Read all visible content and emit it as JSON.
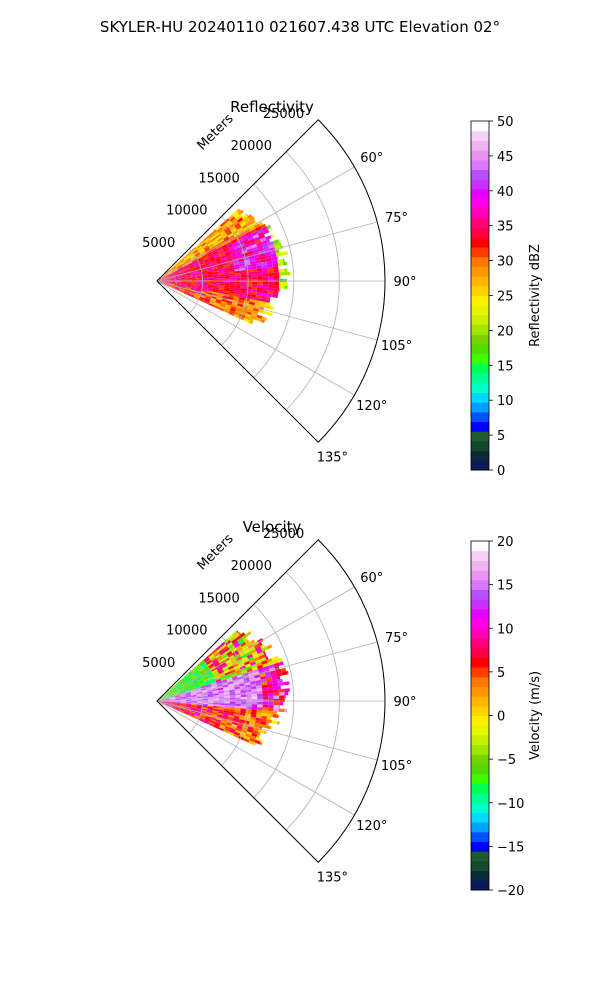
{
  "figure": {
    "suptitle": "SKYLER-HU  20240110  021607.438 UTC Elevation 02°"
  },
  "chart_data": [
    {
      "type": "polar-sector-radar",
      "title": "Reflectivity",
      "radial_label": "Meters",
      "radial_ticks": [
        5000,
        10000,
        15000,
        20000,
        25000
      ],
      "radial_tick_labels": [
        "5000",
        "10000",
        "15000",
        "20000",
        "25000"
      ],
      "angle_ticks": [
        60,
        75,
        90,
        105,
        120,
        135
      ],
      "angle_tick_labels": [
        "60°",
        "75°",
        "90°",
        "105°",
        "120°",
        "135°"
      ],
      "theta_range_deg": [
        45,
        135
      ],
      "r_max_m": 25000,
      "colorbar": {
        "label": "Reflectivity dBZ",
        "range": [
          0,
          50
        ],
        "ticks": [
          0,
          5,
          10,
          15,
          20,
          25,
          30,
          35,
          40,
          45,
          50
        ],
        "tick_labels": [
          "0",
          "5",
          "10",
          "15",
          "20",
          "25",
          "30",
          "35",
          "40",
          "45",
          "50"
        ],
        "colors": [
          "#0b1a5e",
          "#0b2a3a",
          "#164a2e",
          "#1e5a32",
          "#0000ff",
          "#0050ff",
          "#00a0ff",
          "#00d8ff",
          "#00ffc8",
          "#00ff96",
          "#00ff50",
          "#3cff00",
          "#50dc00",
          "#78d200",
          "#a0e600",
          "#c8f000",
          "#e6f500",
          "#fff000",
          "#ffd200",
          "#ffb400",
          "#ff9600",
          "#ff7800",
          "#ff3c00",
          "#ff0000",
          "#ff0046",
          "#ff0078",
          "#ff00b4",
          "#ff00e6",
          "#e600ff",
          "#c832ff",
          "#b450ff",
          "#dc78ff",
          "#e696f0",
          "#f0b4f0",
          "#f5d2f5",
          "#ffffff"
        ]
      }
    },
    {
      "type": "polar-sector-radar",
      "title": "Velocity",
      "radial_label": "Meters",
      "radial_ticks": [
        5000,
        10000,
        15000,
        20000,
        25000
      ],
      "radial_tick_labels": [
        "5000",
        "10000",
        "15000",
        "20000",
        "25000"
      ],
      "angle_ticks": [
        60,
        75,
        90,
        105,
        120,
        135
      ],
      "angle_tick_labels": [
        "60°",
        "75°",
        "90°",
        "105°",
        "120°",
        "135°"
      ],
      "theta_range_deg": [
        45,
        135
      ],
      "r_max_m": 25000,
      "colorbar": {
        "label": "Velocity (m/s)",
        "range": [
          -20,
          20
        ],
        "ticks": [
          -20,
          -15,
          -10,
          -5,
          0,
          5,
          10,
          15,
          20
        ],
        "tick_labels": [
          "−20",
          "−15",
          "−10",
          "−5",
          "0",
          "5",
          "10",
          "15",
          "20"
        ],
        "colors": [
          "#0b1a5e",
          "#0b2a3a",
          "#164a2e",
          "#1e5a32",
          "#0000ff",
          "#0050ff",
          "#00a0ff",
          "#00d8ff",
          "#00ffc8",
          "#00ff96",
          "#00ff50",
          "#3cff00",
          "#50dc00",
          "#78d200",
          "#a0e600",
          "#c8f000",
          "#e6f500",
          "#fff000",
          "#ffd200",
          "#ffb400",
          "#ff9600",
          "#ff7800",
          "#ff3c00",
          "#ff0000",
          "#ff0046",
          "#ff0078",
          "#ff00b4",
          "#ff00e6",
          "#e600ff",
          "#c832ff",
          "#b450ff",
          "#dc78ff",
          "#e696f0",
          "#f0b4f0",
          "#f5d2f5",
          "#ffffff"
        ]
      }
    }
  ]
}
